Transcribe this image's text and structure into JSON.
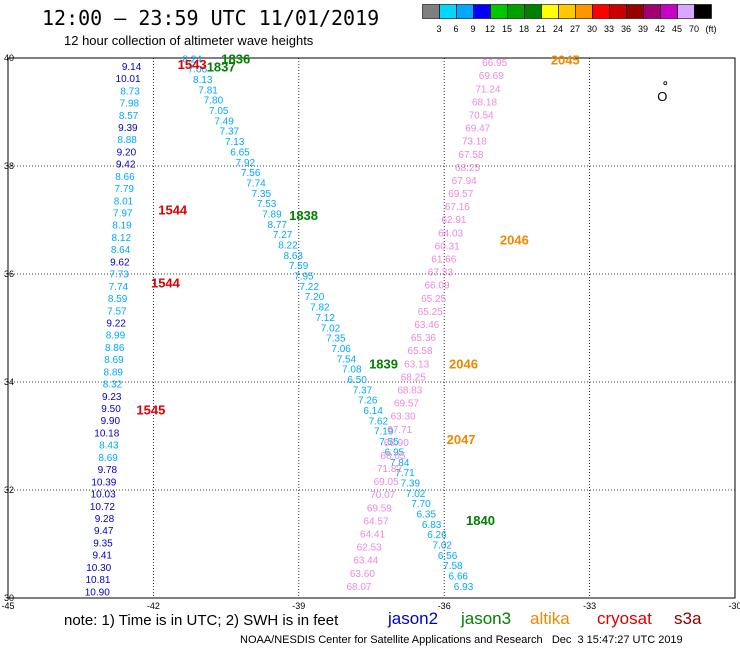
{
  "title": "12:00 – 23:59 UTC 11/01/2019",
  "subtitle": "12 hour collection of altimeter wave heights",
  "colorbar": {
    "colors": [
      "#7f7f7f",
      "#00d8ff",
      "#00a8ff",
      "#0000ff",
      "#00c800",
      "#00a000",
      "#008000",
      "#ffff00",
      "#ffc800",
      "#ff9600",
      "#ff0000",
      "#c80000",
      "#960000",
      "#a00070",
      "#c800c8",
      "#d8a8ff",
      "#000000"
    ],
    "ticks": [
      "3",
      "6",
      "9",
      "12",
      "15",
      "18",
      "21",
      "24",
      "27",
      "30",
      "33",
      "36",
      "39",
      "42",
      "45",
      "70",
      "(ft)"
    ]
  },
  "axes": {
    "x_ticks": [
      "-45",
      "-42",
      "-39",
      "-36",
      "-33",
      "-30"
    ],
    "y_ticks": [
      "40",
      "38",
      "36",
      "34",
      "32",
      "30"
    ],
    "lon_range": [
      -45,
      -30
    ],
    "lat_range": [
      30,
      40
    ]
  },
  "tracks": [
    {
      "satellite": "jason2",
      "color": "#0000cc",
      "start": [
        -42.25,
        39.78
      ],
      "end": [
        -42.9,
        30.05
      ],
      "values": [
        "9.14",
        "10.01",
        "8.73",
        "7.98",
        "8.57",
        "9.39",
        "8.88",
        "9.20",
        "9.42",
        "8.66",
        "7.79",
        "8.01",
        "7.97",
        "8.19",
        "8.12",
        "8.64",
        "9.62",
        "7.73",
        "7.74",
        "8.59",
        "7.57",
        "9.22",
        "8.99",
        "8.86",
        "8.69",
        "8.89",
        "8.32",
        "9.23",
        "9.50",
        "9.90",
        "10.18",
        "8.43",
        "8.69",
        "9.78",
        "10.39",
        "10.03",
        "10.72",
        "9.28",
        "9.47",
        "9.35",
        "9.41",
        "10.30",
        "10.81",
        "10.90"
      ],
      "value_colors": [
        "#0000cc",
        "#0000cc",
        "#00a8ff",
        "#00a8ff",
        "#00a8ff",
        "#0000cc",
        "#00a8ff",
        "#0000cc",
        "#0000cc",
        "#00a8ff",
        "#00a8ff",
        "#00a8ff",
        "#00a8ff",
        "#00a8ff",
        "#00a8ff",
        "#00a8ff",
        "#0000cc",
        "#00a8ff",
        "#00a8ff",
        "#00a8ff",
        "#00a8ff",
        "#0000cc",
        "#00a8ff",
        "#00a8ff",
        "#00a8ff",
        "#00a8ff",
        "#00a8ff",
        "#0000cc",
        "#0000cc",
        "#0000cc",
        "#0000cc",
        "#00a8ff",
        "#00a8ff",
        "#0000cc",
        "#0000cc",
        "#0000cc",
        "#0000cc",
        "#0000cc",
        "#0000cc",
        "#0000cc",
        "#0000cc",
        "#0000cc",
        "#0000cc",
        "#0000cc"
      ]
    },
    {
      "satellite": "jason3",
      "color": "#00a8ff",
      "start": [
        -41.0,
        39.92
      ],
      "end": [
        -35.4,
        30.15
      ],
      "values": [
        "8.24",
        "7.06",
        "8.13",
        "7.81",
        "7.80",
        "7.05",
        "7.49",
        "7.37",
        "7.13",
        "6.65",
        "7.92",
        "7.56",
        "7.74",
        "7.35",
        "7.53",
        "7.89",
        "8.77",
        "7.27",
        "8.22",
        "8.63",
        "7.59",
        "7.95",
        "7.22",
        "7.20",
        "7.82",
        "7.12",
        "7.02",
        "7.35",
        "7.06",
        "7.54",
        "7.08",
        "6.50",
        "7.37",
        "7.26",
        "6.14",
        "7.62",
        "7.19",
        "7.55",
        "6.95",
        "7.84",
        "7.71",
        "7.39",
        "7.02",
        "7.70",
        "6.35",
        "6.83",
        "6.26",
        "7.02",
        "6.56",
        "7.58",
        "6.66",
        "6.93"
      ]
    },
    {
      "satellite": "altika",
      "color": "#ee88dd",
      "start": [
        -34.7,
        39.85
      ],
      "end": [
        -37.5,
        30.15
      ],
      "values": [
        "66.95",
        "69.69",
        "71.24",
        "68.18",
        "70.54",
        "69.47",
        "73.18",
        "67.58",
        "68.25",
        "67.94",
        "69.57",
        "67.16",
        "62.91",
        "64.03",
        "60.31",
        "61.66",
        "67.33",
        "66.09",
        "65.25",
        "65.25",
        "63.46",
        "65.36",
        "65.58",
        "63.13",
        "68.25",
        "68.83",
        "69.57",
        "63.30",
        "67.71",
        "66.90",
        "68.05",
        "71.82",
        "69.05",
        "70.07",
        "69.59",
        "64.57",
        "64.41",
        "62.53",
        "63.44",
        "63.60",
        "68.07"
      ]
    }
  ],
  "time_labels": [
    {
      "text": "1836",
      "color": "#008000",
      "lon": -40.6,
      "lat": 39.9
    },
    {
      "text": "1543",
      "color": "#dd0000",
      "lon": -41.5,
      "lat": 39.8
    },
    {
      "text": "1837",
      "color": "#008000",
      "lon": -40.9,
      "lat": 39.75
    },
    {
      "text": "2045",
      "color": "#ee8800",
      "lon": -33.8,
      "lat": 39.88
    },
    {
      "text": "1544",
      "color": "#dd0000",
      "lon": -41.9,
      "lat": 37.1
    },
    {
      "text": "1838",
      "color": "#008000",
      "lon": -39.2,
      "lat": 37.0
    },
    {
      "text": "2046",
      "color": "#ee8800",
      "lon": -34.85,
      "lat": 36.55
    },
    {
      "text": "1544",
      "color": "#dd0000",
      "lon": -42.05,
      "lat": 35.75
    },
    {
      "text": "1839",
      "color": "#008000",
      "lon": -37.55,
      "lat": 34.25
    },
    {
      "text": "2046",
      "color": "#ee8800",
      "lon": -35.9,
      "lat": 34.25
    },
    {
      "text": "1545",
      "color": "#dd0000",
      "lon": -42.35,
      "lat": 33.4
    },
    {
      "text": "2047",
      "color": "#ee8800",
      "lon": -35.95,
      "lat": 32.85
    },
    {
      "text": "1840",
      "color": "#008000",
      "lon": -35.55,
      "lat": 31.35
    }
  ],
  "land_marker": {
    "symbol": "O",
    "lon": -31.5,
    "lat": 39.2
  },
  "footer": {
    "note": "note: 1) Time is in UTC; 2) SWH is in feet",
    "legend": [
      {
        "name": "jason2",
        "color": "#0000cc"
      },
      {
        "name": "jason3",
        "color": "#008000"
      },
      {
        "name": "altika",
        "color": "#ee8800"
      },
      {
        "name": "cryosat",
        "color": "#dd0000"
      },
      {
        "name": "s3a",
        "color": "#880000"
      }
    ],
    "credit": "NOAA/NESDIS Center for Satellite Applications and Research   Dec  3 15:47:27 UTC 2019"
  }
}
